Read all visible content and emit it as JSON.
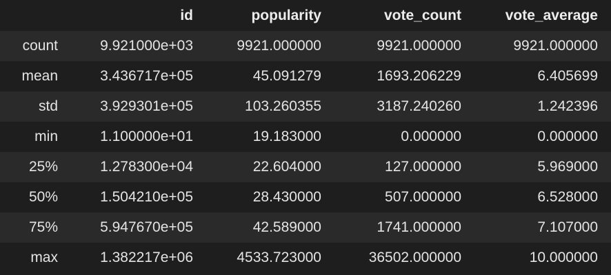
{
  "table": {
    "columns": [
      "",
      "id",
      "popularity",
      "vote_count",
      "vote_average"
    ],
    "rows": [
      {
        "label": "count",
        "cells": [
          "9.921000e+03",
          "9921.000000",
          "9921.000000",
          "9921.000000"
        ]
      },
      {
        "label": "mean",
        "cells": [
          "3.436717e+05",
          "45.091279",
          "1693.206229",
          "6.405699"
        ]
      },
      {
        "label": "std",
        "cells": [
          "3.929301e+05",
          "103.260355",
          "3187.240260",
          "1.242396"
        ]
      },
      {
        "label": "min",
        "cells": [
          "1.100000e+01",
          "19.183000",
          "0.000000",
          "0.000000"
        ]
      },
      {
        "label": "25%",
        "cells": [
          "1.278300e+04",
          "22.604000",
          "127.000000",
          "5.969000"
        ]
      },
      {
        "label": "50%",
        "cells": [
          "1.504210e+05",
          "28.430000",
          "507.000000",
          "6.528000"
        ]
      },
      {
        "label": "75%",
        "cells": [
          "5.947670e+05",
          "42.589000",
          "1741.000000",
          "7.107000"
        ]
      },
      {
        "label": "max",
        "cells": [
          "1.382217e+06",
          "4533.723000",
          "36502.000000",
          "10.000000"
        ]
      }
    ]
  }
}
